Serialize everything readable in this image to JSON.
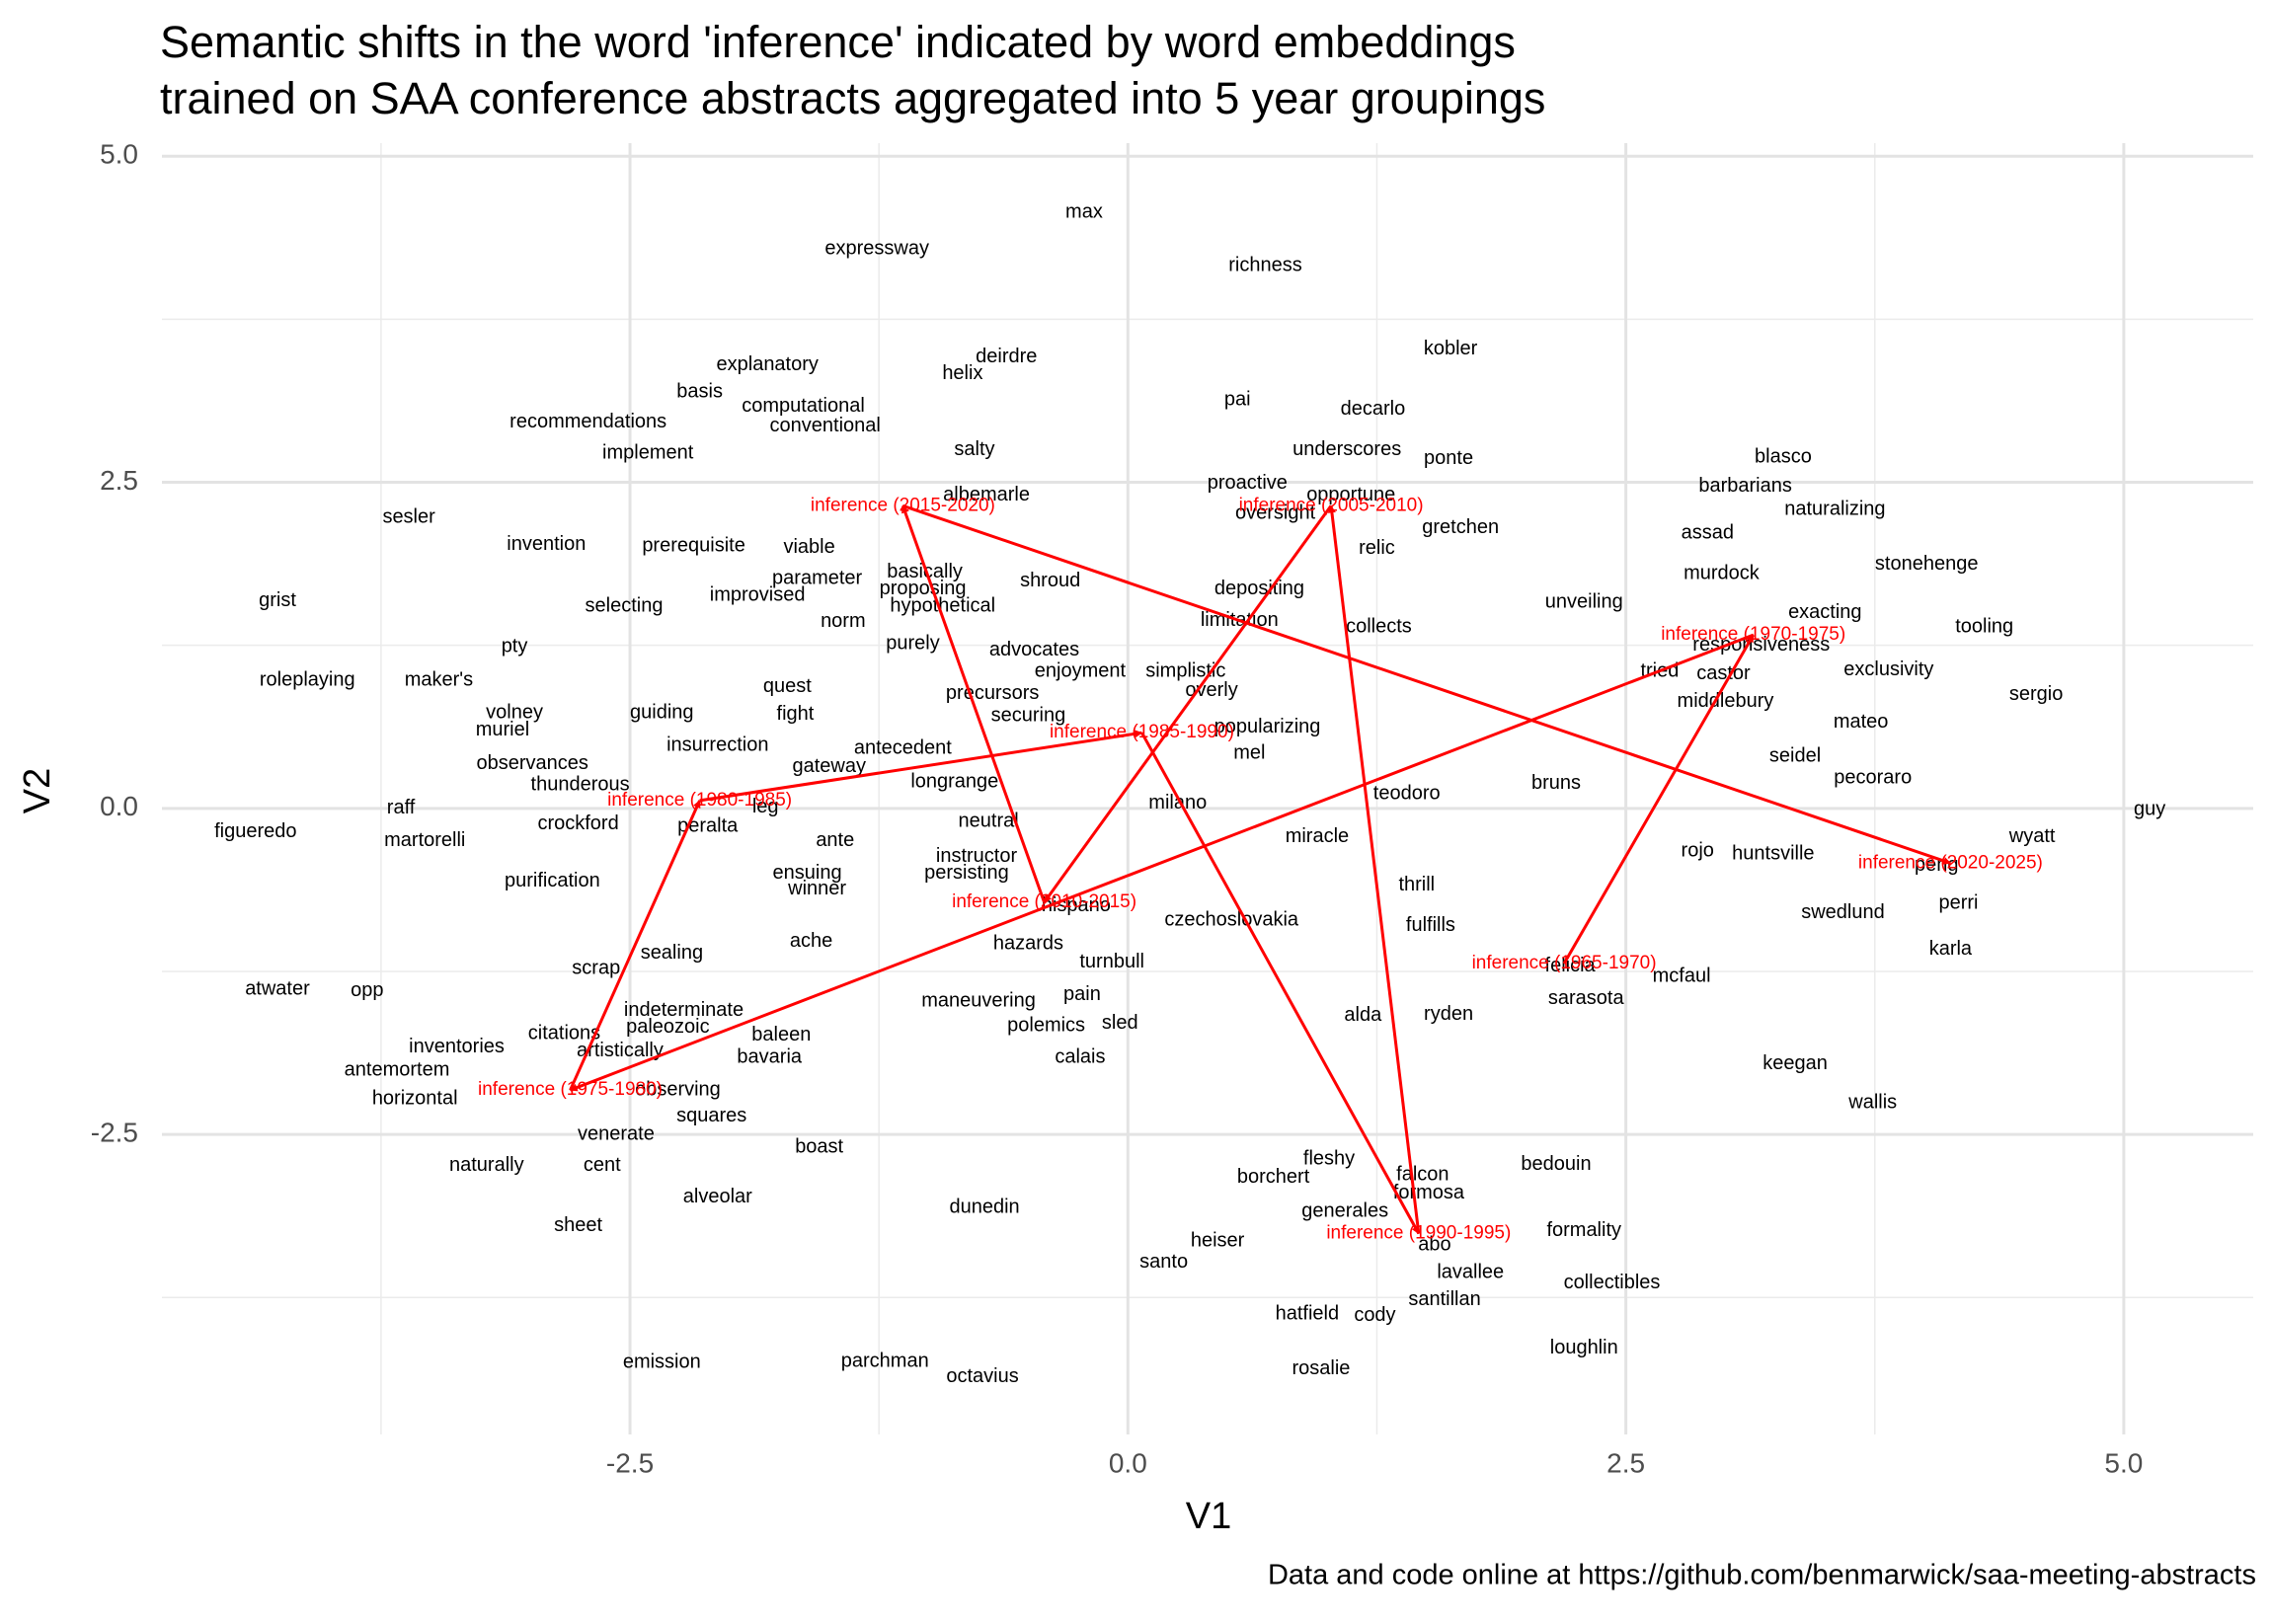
{
  "chart_data": {
    "type": "scatter",
    "title": [
      "Semantic shifts in the word 'inference' indicated by word embeddings",
      "trained on SAA conference abstracts aggregated into 5 year groupings"
    ],
    "caption": "Data and code online at https://github.com/benmarwick/saa-meeting-abstracts",
    "xlabel": "V1",
    "ylabel": "V2",
    "xlim": [
      -4.85,
      5.65
    ],
    "ylim": [
      -4.8,
      5.1
    ],
    "xticks": [
      -2.5,
      {
        "value": 0,
        "label": "0.0"
      },
      2.5,
      {
        "value": 5,
        "label": "5.0"
      }
    ],
    "yticks": [
      -2.5,
      {
        "value": 0,
        "label": "0.0"
      },
      2.5,
      {
        "value": 5,
        "label": "5.0"
      }
    ],
    "x_minor_gridlines": [
      -3.75,
      -1.25,
      1.25,
      3.75
    ],
    "y_minor_gridlines": [
      -3.75,
      -1.25,
      1.25,
      3.75
    ],
    "grid": true,
    "series": [
      {
        "color": "#000000",
        "labels": [
          "max",
          "expressway",
          "richness",
          "kobler",
          "deirdre",
          "explanatory",
          "helix",
          "basis",
          "pai",
          "computational",
          "decarlo",
          "recommendations",
          "conventional",
          "underscores",
          "salty",
          "implement",
          "ponte",
          "blasco",
          "proactive",
          "barbarians",
          "albemarle",
          "opportune",
          "naturalizing",
          "sesler",
          "oversight",
          "gretchen",
          "assad",
          "invention",
          "prerequisite",
          "viable",
          "relic",
          "stonehenge",
          "basically",
          "murdock",
          "parameter",
          "shroud",
          "proposing",
          "depositing",
          "improvised",
          "grist",
          "unveiling",
          "hypothetical",
          "selecting",
          "exacting",
          "limitation",
          "norm",
          "collects",
          "tooling",
          "purely",
          "pty",
          "responsiveness",
          "advocates",
          "exclusivity",
          "castor",
          "tried",
          "enjoyment",
          "simplistic",
          "roleplaying",
          "maker's",
          "quest",
          "precursors",
          "sergio",
          "overly",
          "middlebury",
          "volney",
          "guiding",
          "fight",
          "securing",
          "mateo",
          "popularizing",
          "muriel",
          "insurrection",
          "antecedent",
          "mel",
          "seidel",
          "observances",
          "gateway",
          "pecoraro",
          "longrange",
          "bruns",
          "thunderous",
          "teodoro",
          "milano",
          "leg",
          "raff",
          "guy",
          "neutral",
          "crockford",
          "peralta",
          "figueredo",
          "ante",
          "martorelli",
          "wyatt",
          "miracle",
          "rojo",
          "instructor",
          "huntsville",
          "peng",
          "ensuing",
          "persisting",
          "purification",
          "thrill",
          "winner",
          "perri",
          "hispano",
          "swedlund",
          "czechoslovakia",
          "fulfills",
          "ache",
          "hazards",
          "sealing",
          "karla",
          "turnbull",
          "felicia",
          "scrap",
          "mcfaul",
          "atwater",
          "opp",
          "pain",
          "sarasota",
          "maneuvering",
          "indeterminate",
          "alda",
          "ryden",
          "sled",
          "polemics",
          "paleozoic",
          "citations",
          "baleen",
          "inventories",
          "artistically",
          "bavaria",
          "calais",
          "keegan",
          "antemortem",
          "observing",
          "horizontal",
          "wallis",
          "squares",
          "venerate",
          "boast",
          "fleshy",
          "naturally",
          "cent",
          "bedouin",
          "falcon",
          "borchert",
          "formosa",
          "alveolar",
          "dunedin",
          "generales",
          "sheet",
          "formality",
          "heiser",
          "abo",
          "santo",
          "lavallee",
          "collectibles",
          "santillan",
          "hatfield",
          "cody",
          "loughlin",
          "emission",
          "parchman",
          "rosalie",
          "octavius"
        ],
        "x": [
          -0.22,
          -1.26,
          0.69,
          1.62,
          -0.61,
          -1.81,
          -0.83,
          -2.15,
          0.55,
          -1.63,
          1.23,
          -2.71,
          -1.52,
          1.1,
          -0.77,
          -2.41,
          1.61,
          3.29,
          0.6,
          3.1,
          -0.71,
          1.12,
          3.55,
          -3.61,
          0.74,
          1.67,
          2.91,
          -2.92,
          -2.18,
          -1.6,
          1.25,
          4.01,
          -1.02,
          2.98,
          -1.56,
          -0.39,
          -1.03,
          0.66,
          -1.86,
          -4.27,
          2.29,
          -0.93,
          -2.53,
          3.5,
          0.56,
          -1.43,
          1.26,
          4.3,
          -1.08,
          -3.08,
          3.18,
          -0.47,
          3.82,
          2.99,
          2.67,
          -0.24,
          0.29,
          -4.12,
          -3.46,
          -1.71,
          -0.68,
          4.56,
          0.42,
          3.0,
          -3.08,
          -2.34,
          -1.67,
          -0.5,
          3.68,
          0.7,
          -3.14,
          -2.06,
          -1.13,
          0.61,
          3.35,
          -2.99,
          -1.5,
          3.74,
          -0.87,
          2.15,
          -2.75,
          1.4,
          0.25,
          -1.82,
          -3.65,
          5.13,
          -0.7,
          -2.76,
          -2.11,
          -4.38,
          -1.47,
          -3.53,
          4.54,
          0.95,
          2.86,
          -0.76,
          3.24,
          4.06,
          -1.61,
          -0.81,
          -2.89,
          1.45,
          -1.56,
          4.17,
          -0.26,
          3.59,
          0.52,
          1.52,
          -1.59,
          -0.5,
          -2.29,
          4.13,
          -0.08,
          2.22,
          -2.67,
          2.78,
          -4.27,
          -3.82,
          -0.23,
          2.3,
          -0.75,
          -2.23,
          1.18,
          1.61,
          -0.04,
          -0.41,
          -2.31,
          -2.83,
          -1.74,
          -3.37,
          -2.55,
          -1.8,
          -0.24,
          3.35,
          -3.67,
          -2.26,
          -3.58,
          3.74,
          -2.09,
          -2.57,
          -1.55,
          1.01,
          -3.22,
          -2.64,
          2.15,
          1.48,
          0.73,
          1.51,
          -2.06,
          -0.72,
          1.09,
          -2.76,
          2.29,
          0.45,
          1.54,
          0.18,
          1.72,
          2.43,
          1.59,
          0.9,
          1.24,
          2.29,
          -2.34,
          -1.22,
          0.97,
          -0.73
        ],
        "values": [
          4.57,
          4.29,
          4.16,
          3.52,
          3.46,
          3.4,
          3.33,
          3.19,
          3.13,
          3.08,
          3.06,
          2.96,
          2.93,
          2.75,
          2.75,
          2.72,
          2.68,
          2.69,
          2.49,
          2.47,
          2.4,
          2.4,
          2.29,
          2.23,
          2.26,
          2.15,
          2.11,
          2.02,
          2.01,
          2.0,
          1.99,
          1.87,
          1.81,
          1.8,
          1.76,
          1.74,
          1.68,
          1.68,
          1.63,
          1.59,
          1.58,
          1.55,
          1.55,
          1.5,
          1.44,
          1.43,
          1.39,
          1.39,
          1.26,
          1.24,
          1.25,
          1.21,
          1.06,
          1.03,
          1.05,
          1.05,
          1.05,
          0.98,
          0.98,
          0.93,
          0.88,
          0.87,
          0.9,
          0.82,
          0.73,
          0.73,
          0.72,
          0.71,
          0.66,
          0.62,
          0.6,
          0.48,
          0.46,
          0.42,
          0.4,
          0.34,
          0.32,
          0.23,
          0.2,
          0.19,
          0.18,
          0.11,
          0.04,
          0.01,
          0.0,
          -0.01,
          -0.1,
          -0.12,
          -0.14,
          -0.18,
          -0.25,
          -0.25,
          -0.22,
          -0.22,
          -0.33,
          -0.37,
          -0.35,
          -0.44,
          -0.5,
          -0.5,
          -0.56,
          -0.59,
          -0.62,
          -0.73,
          -0.75,
          -0.8,
          -0.86,
          -0.9,
          -1.02,
          -1.04,
          -1.11,
          -1.08,
          -1.18,
          -1.21,
          -1.23,
          -1.29,
          -1.39,
          -1.4,
          -1.43,
          -1.46,
          -1.48,
          -1.55,
          -1.59,
          -1.58,
          -1.65,
          -1.67,
          -1.68,
          -1.73,
          -1.74,
          -1.83,
          -1.86,
          -1.91,
          -1.91,
          -1.96,
          -2.01,
          -2.16,
          -2.23,
          -2.26,
          -2.36,
          -2.5,
          -2.6,
          -2.69,
          -2.74,
          -2.74,
          -2.73,
          -2.81,
          -2.83,
          -2.95,
          -2.98,
          -3.06,
          -3.09,
          -3.2,
          -3.24,
          -3.32,
          -3.35,
          -3.48,
          -3.56,
          -3.64,
          -3.77,
          -3.88,
          -3.89,
          -4.14,
          -4.25,
          -4.24,
          -4.3,
          -4.36
        ]
      },
      {
        "color": "#ff0000",
        "arrows": true,
        "labels": [
          "inference (1965-1970)",
          "inference (1970-1975)",
          "inference (1975-1980)",
          "inference (1980-1985)",
          "inference (1985-1990)",
          "inference (1990-1995)",
          "inference (2005-2010)",
          "inference (2010-2015)",
          "inference (2015-2020)",
          "inference (2020-2025)"
        ],
        "x": [
          2.19,
          3.14,
          -2.8,
          -2.15,
          0.07,
          1.46,
          1.02,
          -0.42,
          -1.13,
          4.13
        ],
        "values": [
          -1.19,
          1.33,
          -2.16,
          0.06,
          0.58,
          -3.26,
          2.32,
          -0.72,
          2.32,
          -0.42
        ]
      }
    ]
  }
}
